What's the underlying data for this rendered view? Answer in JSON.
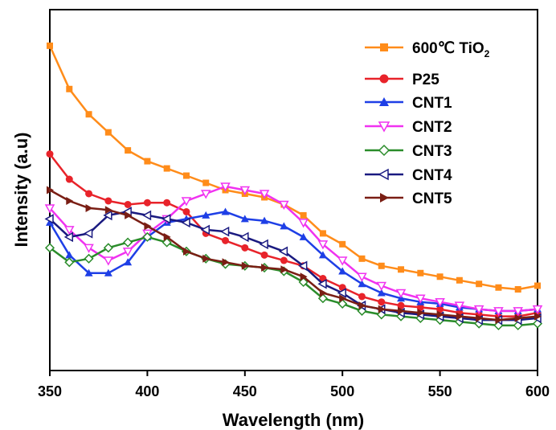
{
  "chart_data": {
    "type": "line",
    "xlabel": "Wavelength (nm)",
    "ylabel": "Intensity (a.u)",
    "xlim": [
      350,
      600
    ],
    "ylim": [
      0,
      1
    ],
    "y_ticks_labeled": false,
    "grid": false,
    "legend_position": "top-right",
    "x_ticks": [
      {
        "value": 350,
        "label": "350"
      },
      {
        "value": 400,
        "label": "400"
      },
      {
        "value": 450,
        "label": "450"
      },
      {
        "value": 500,
        "label": "500"
      },
      {
        "value": 550,
        "label": "550"
      },
      {
        "value": 600,
        "label": "600"
      }
    ],
    "x": [
      350,
      360,
      370,
      380,
      390,
      400,
      410,
      420,
      430,
      440,
      450,
      460,
      470,
      480,
      490,
      500,
      510,
      520,
      530,
      540,
      550,
      560,
      570,
      580,
      590,
      600
    ],
    "series": [
      {
        "name_main": "600℃ TiO",
        "name_sub": "2",
        "color": "#FF8C1A",
        "marker": "square",
        "values": [
          0.9,
          0.78,
          0.71,
          0.66,
          0.61,
          0.58,
          0.56,
          0.54,
          0.52,
          0.5,
          0.49,
          0.48,
          0.46,
          0.43,
          0.38,
          0.35,
          0.31,
          0.29,
          0.28,
          0.27,
          0.26,
          0.25,
          0.24,
          0.23,
          0.225,
          0.235
        ]
      },
      {
        "name": "P25",
        "color": "#E8232A",
        "marker": "circle",
        "values": [
          0.6,
          0.53,
          0.49,
          0.47,
          0.46,
          0.465,
          0.465,
          0.44,
          0.38,
          0.36,
          0.34,
          0.32,
          0.305,
          0.29,
          0.255,
          0.23,
          0.205,
          0.19,
          0.18,
          0.175,
          0.17,
          0.16,
          0.155,
          0.15,
          0.15,
          0.16
        ]
      },
      {
        "name": "CNT1",
        "color": "#1E3FE6",
        "marker": "triangle-up",
        "values": [
          0.41,
          0.32,
          0.27,
          0.27,
          0.3,
          0.37,
          0.41,
          0.42,
          0.43,
          0.44,
          0.42,
          0.415,
          0.4,
          0.37,
          0.32,
          0.275,
          0.24,
          0.215,
          0.2,
          0.19,
          0.185,
          0.175,
          0.17,
          0.165,
          0.165,
          0.17
        ]
      },
      {
        "name": "CNT2",
        "color": "#F032F0",
        "marker": "triangle-down",
        "values": [
          0.45,
          0.39,
          0.34,
          0.305,
          0.33,
          0.38,
          0.42,
          0.47,
          0.49,
          0.51,
          0.5,
          0.49,
          0.46,
          0.41,
          0.35,
          0.305,
          0.26,
          0.235,
          0.215,
          0.2,
          0.19,
          0.18,
          0.17,
          0.165,
          0.165,
          0.17
        ]
      },
      {
        "name": "CNT3",
        "color": "#2A8C2A",
        "marker": "diamond",
        "values": [
          0.34,
          0.3,
          0.31,
          0.34,
          0.355,
          0.37,
          0.355,
          0.33,
          0.31,
          0.295,
          0.29,
          0.285,
          0.275,
          0.245,
          0.2,
          0.185,
          0.165,
          0.155,
          0.15,
          0.145,
          0.14,
          0.135,
          0.13,
          0.125,
          0.125,
          0.13
        ]
      },
      {
        "name": "CNT4",
        "color": "#1A1A80",
        "marker": "triangle-left",
        "values": [
          0.42,
          0.37,
          0.38,
          0.43,
          0.44,
          0.43,
          0.42,
          0.41,
          0.39,
          0.385,
          0.37,
          0.35,
          0.33,
          0.29,
          0.24,
          0.215,
          0.18,
          0.17,
          0.16,
          0.155,
          0.15,
          0.145,
          0.14,
          0.14,
          0.14,
          0.145
        ]
      },
      {
        "name": "CNT5",
        "color": "#7A1E14",
        "marker": "triangle-right",
        "values": [
          0.5,
          0.47,
          0.45,
          0.445,
          0.43,
          0.4,
          0.37,
          0.33,
          0.31,
          0.3,
          0.29,
          0.285,
          0.28,
          0.26,
          0.215,
          0.2,
          0.18,
          0.17,
          0.165,
          0.16,
          0.155,
          0.15,
          0.145,
          0.14,
          0.145,
          0.15
        ]
      }
    ]
  }
}
